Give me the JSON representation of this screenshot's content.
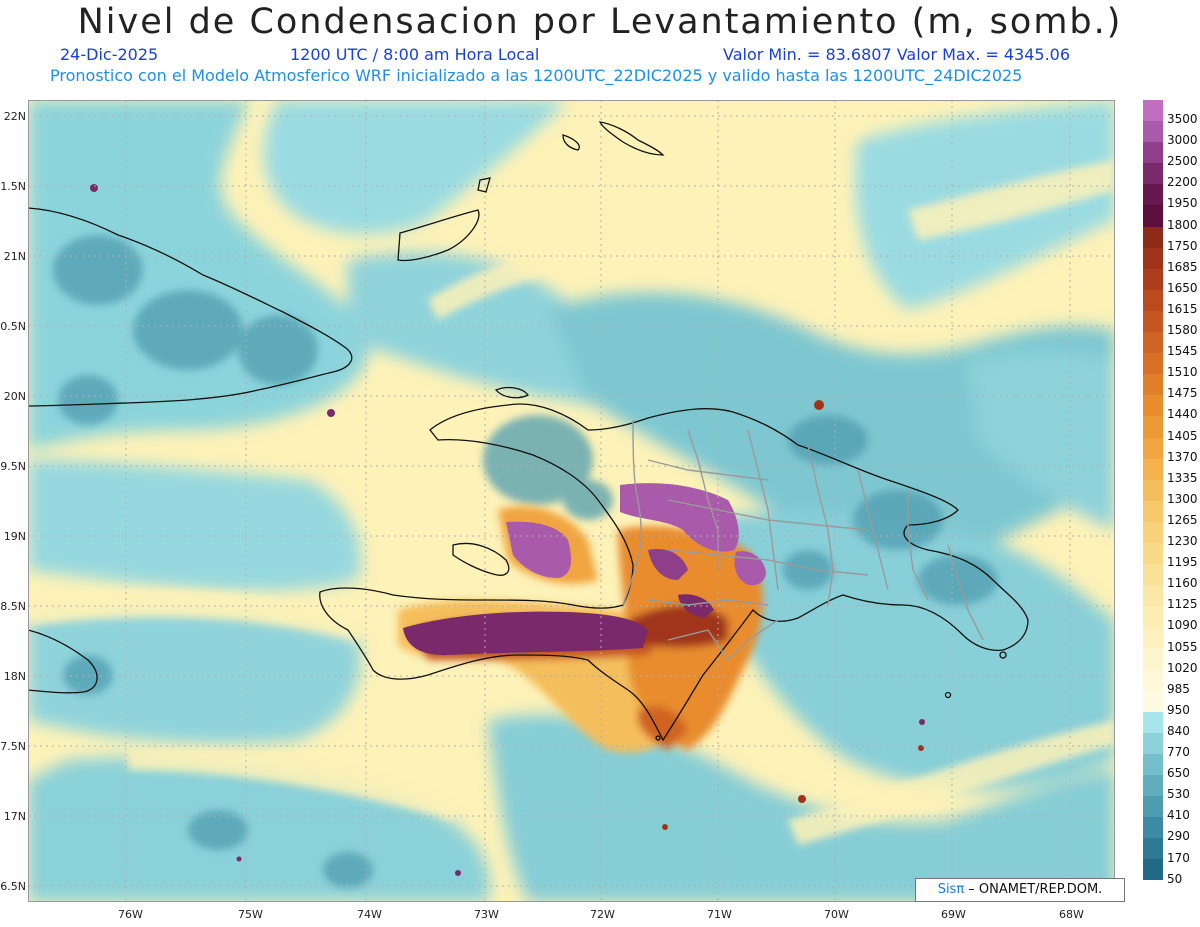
{
  "title": "Nivel de Condensacion por Levantamiento (m, somb.)",
  "date": "24-Dic-2025",
  "time": "1200 UTC / 8:00 am Hora Local",
  "minmax": "Valor Min. = 83.6807   Valor Max. = 4345.06",
  "forecast_info": "Pronostico con el Modelo Atmosferico WRF inicializado a las 1200UTC_22DIC2025 y valido hasta las  1200UTC_24DIC2025",
  "credit_sis": "Sisπ",
  "credit_rest": " – ONAMET/REP.DOM.",
  "lat_labels": [
    "22N",
    "1.5N",
    "21N",
    "0.5N",
    "20N",
    "9.5N",
    "19N",
    "8.5N",
    "18N",
    "7.5N",
    "17N",
    "6.5N"
  ],
  "lon_labels": [
    "76W",
    "75W",
    "74W",
    "73W",
    "72W",
    "71W",
    "70W",
    "69W",
    "68W"
  ],
  "colorbar": {
    "levels": [
      "3500",
      "3000",
      "2500",
      "2200",
      "1950",
      "1800",
      "1750",
      "1685",
      "1650",
      "1615",
      "1580",
      "1545",
      "1510",
      "1475",
      "1440",
      "1405",
      "1370",
      "1335",
      "1300",
      "1265",
      "1230",
      "1195",
      "1160",
      "1125",
      "1090",
      "1055",
      "1020",
      "985",
      "950",
      "840",
      "770",
      "650",
      "530",
      "410",
      "290",
      "170",
      "50"
    ],
    "colors": [
      "#c06ec0",
      "#a95aab",
      "#8f3e8a",
      "#7a2a6a",
      "#66184f",
      "#5c0f3c",
      "#8c2a18",
      "#a0341a",
      "#ae3d1c",
      "#bb4a1e",
      "#c55722",
      "#cf6424",
      "#d87126",
      "#e07f2a",
      "#e88c2e",
      "#ec9a36",
      "#f0a540",
      "#f3b24e",
      "#f5be5c",
      "#f7c96a",
      "#f8d27a",
      "#f9da88",
      "#fae198",
      "#fbe8a6",
      "#fcedb2",
      "#fdf1bf",
      "#fdf5cc",
      "#fef8d9",
      "#fffbe3",
      "#a8e4ec",
      "#8dd2da",
      "#74bfcb",
      "#5fadbd",
      "#4d9caf",
      "#3c8ba2",
      "#2e7a94",
      "#226a86"
    ]
  }
}
